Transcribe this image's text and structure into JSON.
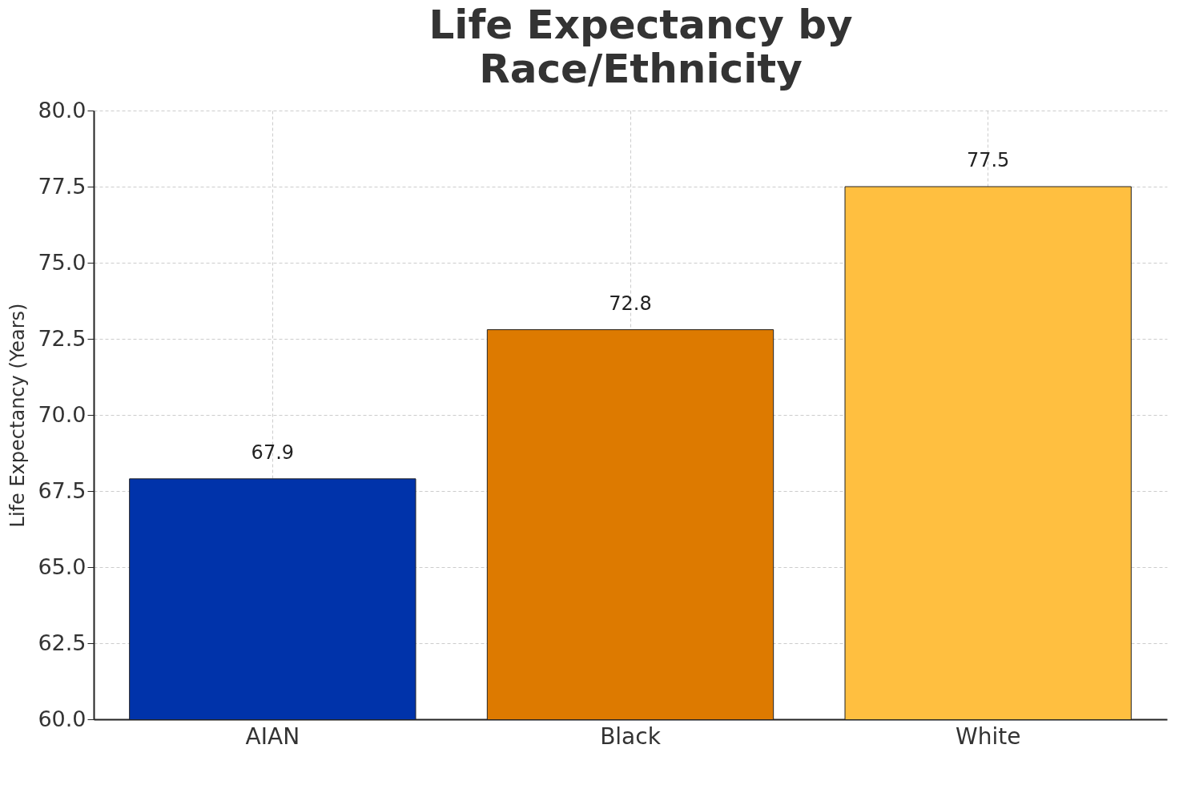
{
  "chart_data": {
    "type": "bar",
    "title": "Life Expectancy by Race/Ethnicity",
    "ylabel": "Life Expectancy (Years)",
    "categories": [
      "AIAN",
      "Black",
      "White"
    ],
    "values": [
      67.9,
      72.8,
      77.5
    ],
    "colors": [
      "#0033aa",
      "#dd7a00",
      "#ffbf40"
    ],
    "ylim": [
      60,
      80
    ],
    "yticks": [
      {
        "value": 60,
        "label": "60.0"
      },
      {
        "value": 62.5,
        "label": "62.5"
      },
      {
        "value": 65,
        "label": "65.0"
      },
      {
        "value": 67.5,
        "label": "67.5"
      },
      {
        "value": 70,
        "label": "70.0"
      },
      {
        "value": 72.5,
        "label": "72.5"
      },
      {
        "value": 75,
        "label": "75.0"
      },
      {
        "value": 77.5,
        "label": "77.5"
      },
      {
        "value": 80,
        "label": "80.0"
      }
    ],
    "grid": true,
    "data_labels": true
  }
}
